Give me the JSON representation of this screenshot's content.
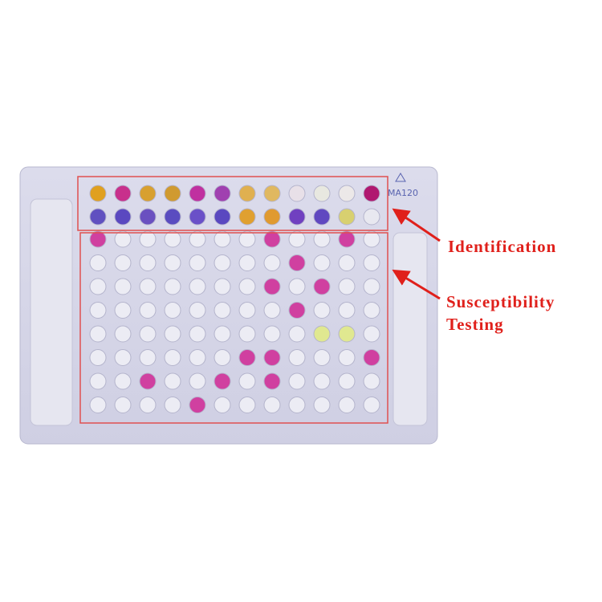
{
  "annotations": {
    "identification": "Identification",
    "susceptibility": [
      "Susceptibility",
      "Testing"
    ]
  },
  "plate": {
    "model": "MA120"
  }
}
